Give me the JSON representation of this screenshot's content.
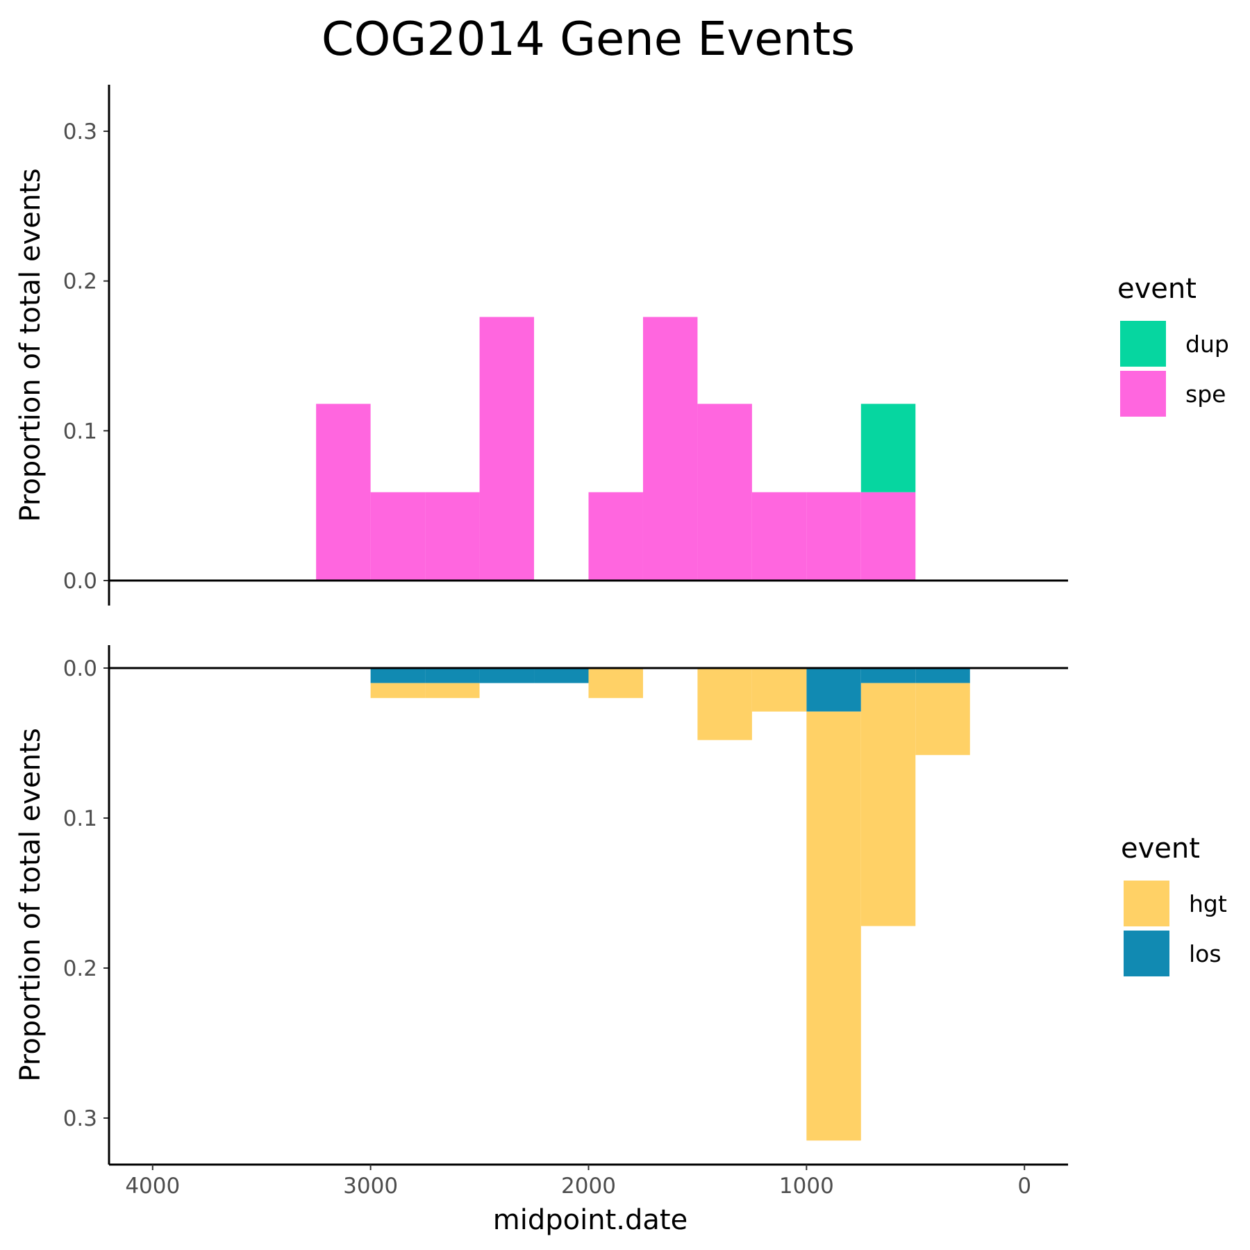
{
  "chart_data": {
    "type": "bar",
    "title": "COG2014 Gene Events",
    "xlabel": "midpoint.date",
    "x_reversed": true,
    "xlim": [
      4200,
      -200
    ],
    "xticks": [
      4000,
      3000,
      2000,
      1000,
      0
    ],
    "bin_width": 250,
    "panels": [
      {
        "ylabel": "Proportion of total events",
        "ylim": [
          0,
          0.33
        ],
        "yticks": [
          "0.0",
          "0.1",
          "0.2",
          "0.3"
        ],
        "direction": "up",
        "legend_title": "event",
        "series": [
          {
            "name": "spe",
            "color": "#FF66DF",
            "bins": [
              {
                "x": 3125,
                "y": 0.118
              },
              {
                "x": 2875,
                "y": 0.059
              },
              {
                "x": 2625,
                "y": 0.059
              },
              {
                "x": 2375,
                "y": 0.176
              },
              {
                "x": 1875,
                "y": 0.059
              },
              {
                "x": 1625,
                "y": 0.176
              },
              {
                "x": 1375,
                "y": 0.118
              },
              {
                "x": 1125,
                "y": 0.059
              },
              {
                "x": 875,
                "y": 0.059
              },
              {
                "x": 625,
                "y": 0.059
              }
            ]
          },
          {
            "name": "dup",
            "color": "#06D6A0",
            "bins": [
              {
                "x": 625,
                "y": 0.059
              }
            ]
          }
        ],
        "legend_items": [
          "dup",
          "spe"
        ]
      },
      {
        "ylabel": "Proportion of total events",
        "ylim": [
          0,
          0.33
        ],
        "yticks": [
          "0.0",
          "0.1",
          "0.2",
          "0.3"
        ],
        "direction": "down",
        "legend_title": "event",
        "series": [
          {
            "name": "los",
            "color": "#118AB2",
            "bins": [
              {
                "x": 2875,
                "y": 0.01
              },
              {
                "x": 2625,
                "y": 0.01
              },
              {
                "x": 2375,
                "y": 0.01
              },
              {
                "x": 2125,
                "y": 0.01
              },
              {
                "x": 875,
                "y": 0.029
              },
              {
                "x": 625,
                "y": 0.01
              },
              {
                "x": 375,
                "y": 0.01
              }
            ]
          },
          {
            "name": "hgt",
            "color": "#FFD166",
            "bins": [
              {
                "x": 2875,
                "y": 0.01
              },
              {
                "x": 2625,
                "y": 0.01
              },
              {
                "x": 1875,
                "y": 0.02
              },
              {
                "x": 1375,
                "y": 0.048
              },
              {
                "x": 1125,
                "y": 0.029
              },
              {
                "x": 875,
                "y": 0.286
              },
              {
                "x": 625,
                "y": 0.162
              },
              {
                "x": 375,
                "y": 0.048
              }
            ]
          }
        ],
        "legend_items": [
          "hgt",
          "los"
        ]
      }
    ]
  }
}
